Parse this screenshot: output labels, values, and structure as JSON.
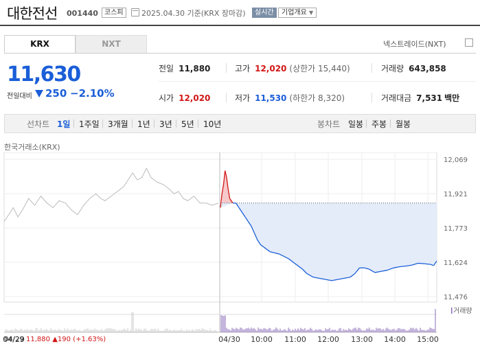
{
  "header": {
    "stock_name": "대한전선",
    "stock_code": "001440",
    "market": "코스피",
    "date": "2025.04.30",
    "basis": "기준(KRX 장마감)",
    "realtime_label": "실시간",
    "company_info_label": "기업개요"
  },
  "tabs": [
    {
      "label": "KRX",
      "active": true
    },
    {
      "label": "NXT",
      "active": false
    }
  ],
  "nxt_link_label": "넥스트레이드(NXT)",
  "price": {
    "current": "11,630",
    "change_label": "전일대비",
    "change": "250",
    "change_pct": "−2.10%",
    "direction": "down"
  },
  "stats": {
    "prev_close_label": "전일",
    "prev_close": "11,880",
    "high_label": "고가",
    "high": "12,020",
    "upper_limit": "(상한가 15,440)",
    "volume_label": "거래량",
    "volume": "643,858",
    "open_label": "시가",
    "open": "12,020",
    "low_label": "저가",
    "low": "11,530",
    "lower_limit": "(하한가 8,320)",
    "trade_value_label": "거래대금",
    "trade_value": "7,531",
    "trade_value_unit": "백만"
  },
  "toolbar": {
    "line_chart_label": "선차트",
    "periods": [
      "1일",
      "1주일",
      "3개월",
      "1년",
      "3년",
      "5년",
      "10년"
    ],
    "active_period": "1일",
    "candle_chart_label": "봉차트",
    "candle_periods": [
      "일봉",
      "주봉",
      "월봉"
    ]
  },
  "chart_data": {
    "type": "line",
    "exchange_label": "한국거래소(KRX)",
    "y_ticks": [
      "12,069",
      "11,921",
      "11,773",
      "11,624",
      "11,476"
    ],
    "ylim": [
      11476,
      12069
    ],
    "x_ticks": [
      "04/29",
      "04/30",
      "10:00",
      "11:00",
      "12:00",
      "13:00",
      "14:00",
      "15:00"
    ],
    "reference_line": 11880,
    "volume_legend": "거래량",
    "prev_day_series": [
      [
        0,
        11800
      ],
      [
        3,
        11830
      ],
      [
        6,
        11860
      ],
      [
        9,
        11820
      ],
      [
        12,
        11850
      ],
      [
        16,
        11900
      ],
      [
        20,
        11870
      ],
      [
        24,
        11910
      ],
      [
        28,
        11880
      ],
      [
        32,
        11860
      ],
      [
        36,
        11890
      ],
      [
        40,
        11880
      ],
      [
        44,
        11850
      ],
      [
        48,
        11830
      ],
      [
        52,
        11870
      ],
      [
        56,
        11900
      ],
      [
        60,
        11920
      ],
      [
        63,
        11900
      ],
      [
        66,
        11890
      ],
      [
        70,
        11910
      ],
      [
        74,
        11930
      ],
      [
        78,
        11950
      ],
      [
        81,
        11980
      ],
      [
        84,
        12010
      ],
      [
        87,
        11980
      ],
      [
        90,
        11990
      ],
      [
        93,
        12030
      ],
      [
        96,
        11990
      ],
      [
        100,
        11970
      ],
      [
        104,
        11960
      ],
      [
        108,
        11940
      ],
      [
        111,
        11920
      ],
      [
        114,
        11930
      ],
      [
        117,
        11900
      ],
      [
        120,
        11890
      ],
      [
        124,
        11910
      ],
      [
        128,
        11880
      ],
      [
        132,
        11880
      ],
      [
        136,
        11870
      ],
      [
        140,
        11880
      ]
    ],
    "today_series": [
      [
        0,
        11860
      ],
      [
        1,
        11920
      ],
      [
        2,
        11960
      ],
      [
        3,
        12020
      ],
      [
        4,
        11990
      ],
      [
        5,
        11940
      ],
      [
        6,
        11900
      ],
      [
        8,
        11880
      ],
      [
        10,
        11880
      ],
      [
        12,
        11860
      ],
      [
        14,
        11840
      ],
      [
        16,
        11820
      ],
      [
        18,
        11800
      ],
      [
        20,
        11780
      ],
      [
        22,
        11750
      ],
      [
        24,
        11720
      ],
      [
        26,
        11700
      ],
      [
        28,
        11690
      ],
      [
        30,
        11680
      ],
      [
        32,
        11670
      ],
      [
        35,
        11665
      ],
      [
        38,
        11660
      ],
      [
        41,
        11650
      ],
      [
        44,
        11640
      ],
      [
        47,
        11625
      ],
      [
        50,
        11610
      ],
      [
        53,
        11595
      ],
      [
        56,
        11575
      ],
      [
        60,
        11560
      ],
      [
        64,
        11555
      ],
      [
        68,
        11550
      ],
      [
        72,
        11545
      ],
      [
        76,
        11550
      ],
      [
        80,
        11555
      ],
      [
        84,
        11560
      ],
      [
        87,
        11575
      ],
      [
        90,
        11600
      ],
      [
        93,
        11600
      ],
      [
        96,
        11595
      ],
      [
        100,
        11580
      ],
      [
        104,
        11585
      ],
      [
        108,
        11590
      ],
      [
        112,
        11600
      ],
      [
        116,
        11605
      ],
      [
        120,
        11608
      ],
      [
        124,
        11612
      ],
      [
        128,
        11620
      ],
      [
        132,
        11618
      ],
      [
        136,
        11615
      ],
      [
        138,
        11610
      ],
      [
        140,
        11630
      ]
    ],
    "prev_close_footer": {
      "date": "04/29",
      "close": "11,880",
      "change": "▲190",
      "change_pct": "(+1.63%)"
    }
  },
  "colors": {
    "up": "#d21515",
    "down": "#1a5ed8",
    "area_fill": "#e4ecf9",
    "prev_line": "#bbbbbb"
  }
}
